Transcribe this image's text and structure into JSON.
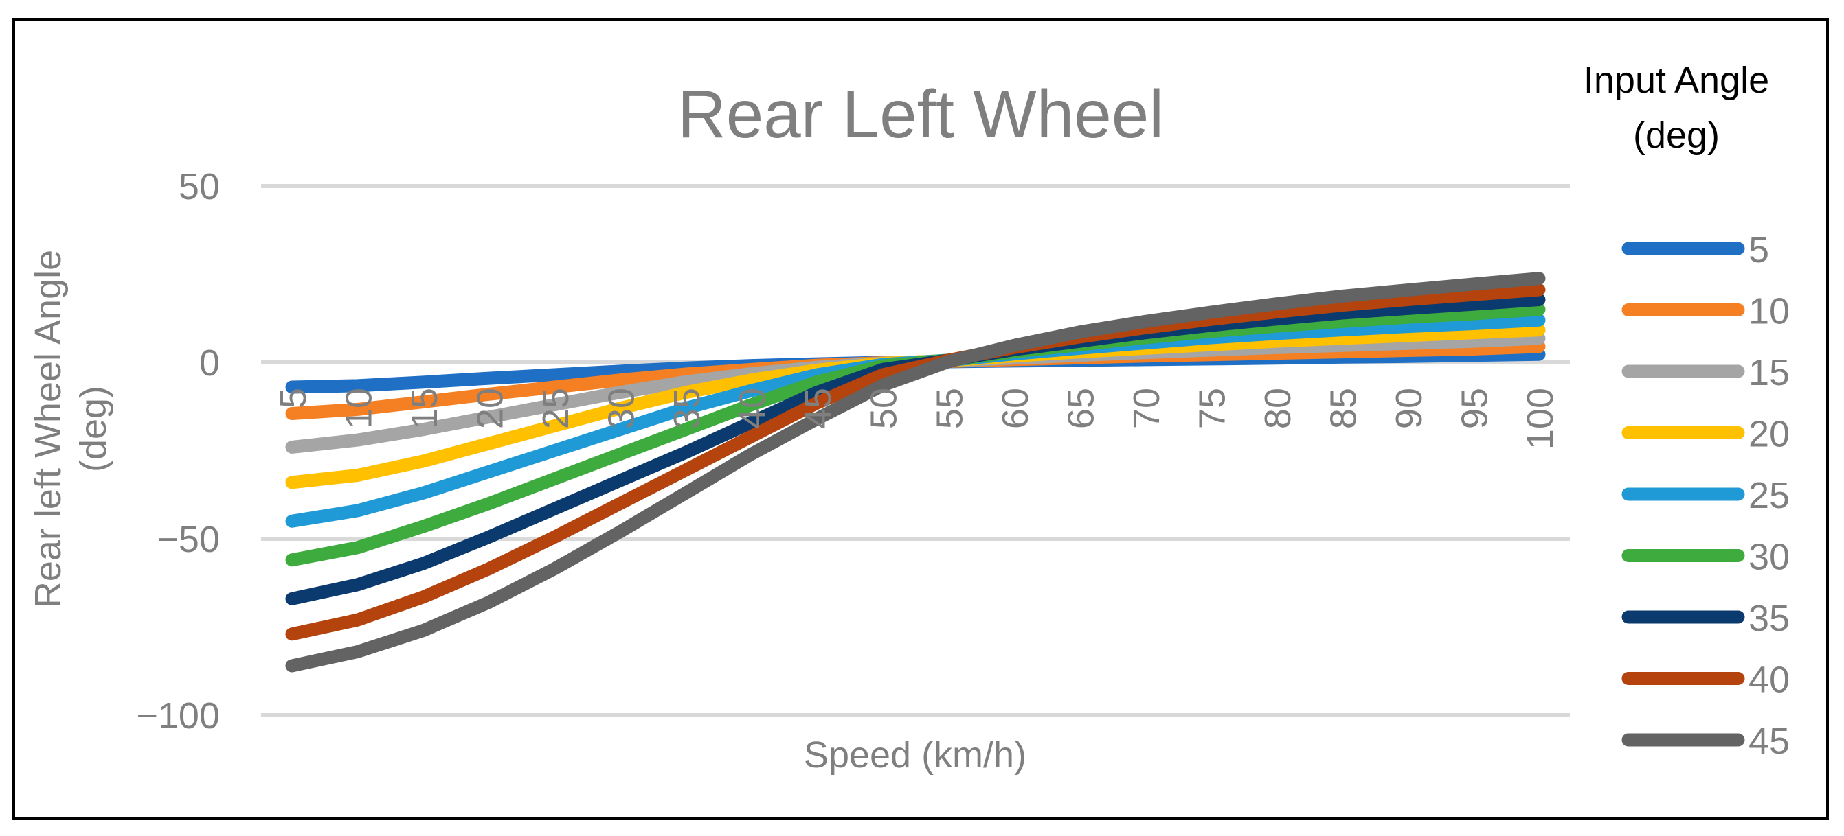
{
  "chart_data": {
    "type": "line",
    "title": "Rear Left Wheel",
    "xlabel": "Speed (km/h)",
    "ylabel": "Rear left Wheel Angle (deg)",
    "ylabel_lines": [
      "Rear left Wheel Angle",
      "(deg)"
    ],
    "ylim": [
      -100,
      50
    ],
    "yticks": [
      50,
      0,
      -50,
      -100
    ],
    "ytick_labels": [
      "50",
      "0",
      "−50",
      "−100"
    ],
    "grid": true,
    "legend_position": "right",
    "legend_title_lines": [
      "Input Angle",
      "(deg)"
    ],
    "categories": [
      "5",
      "10",
      "15",
      "20",
      "25",
      "30",
      "35",
      "40",
      "45",
      "50",
      "55",
      "60",
      "65",
      "70",
      "75",
      "80",
      "85",
      "90",
      "95",
      "100"
    ],
    "series": [
      {
        "name": "5",
        "color": "#1f6fc5",
        "values": [
          -7,
          -6.6,
          -5.6,
          -4.5,
          -3.5,
          -2.5,
          -1.6,
          -0.9,
          -0.4,
          0,
          0.2,
          0.4,
          0.6,
          0.8,
          1.0,
          1.2,
          1.5,
          1.7,
          2.0,
          2.3
        ]
      },
      {
        "name": "10",
        "color": "#f58024",
        "values": [
          -14.5,
          -13.3,
          -11.2,
          -9,
          -7,
          -5,
          -3.3,
          -2,
          -0.8,
          -0.1,
          0.3,
          0.8,
          1.3,
          1.8,
          2.2,
          2.6,
          3.0,
          3.4,
          3.8,
          4.5
        ]
      },
      {
        "name": "15",
        "color": "#a5a5a5",
        "values": [
          -24,
          -22,
          -19,
          -15.5,
          -12,
          -8.5,
          -5.5,
          -3.2,
          -1.4,
          -0.2,
          0.4,
          1.2,
          2.0,
          2.8,
          3.5,
          4.2,
          4.8,
          5.4,
          6.0,
          6.8
        ]
      },
      {
        "name": "20",
        "color": "#ffc000",
        "values": [
          -34,
          -32,
          -28,
          -23,
          -18,
          -13,
          -8.5,
          -5,
          -2.2,
          -0.3,
          0.5,
          1.8,
          3.0,
          4.0,
          5.0,
          6.0,
          6.8,
          7.6,
          8.4,
          9.2
        ]
      },
      {
        "name": "25",
        "color": "#1f9ad6",
        "values": [
          -45,
          -42,
          -37,
          -31,
          -25,
          -19,
          -13,
          -8,
          -3.5,
          -0.6,
          0.6,
          2.4,
          4.0,
          5.5,
          7.0,
          8.2,
          9.2,
          10.2,
          11.0,
          12.0
        ]
      },
      {
        "name": "30",
        "color": "#3dab3d",
        "values": [
          -56,
          -52.5,
          -46.5,
          -40,
          -33,
          -26,
          -19,
          -12,
          -5.5,
          -1,
          0.6,
          3.0,
          5.0,
          7.0,
          8.8,
          10.3,
          11.6,
          12.8,
          13.8,
          15.0
        ]
      },
      {
        "name": "35",
        "color": "#0a3a6e",
        "values": [
          -67,
          -63,
          -57,
          -49.5,
          -41.5,
          -33.5,
          -25.5,
          -17,
          -8.5,
          -2,
          0.6,
          3.6,
          6.0,
          8.4,
          10.5,
          12.3,
          14.0,
          15.3,
          16.5,
          17.8
        ]
      },
      {
        "name": "40",
        "color": "#b4430e",
        "values": [
          -77,
          -73,
          -66.5,
          -58.5,
          -49.5,
          -40,
          -30.5,
          -21,
          -11.5,
          -3.5,
          0.6,
          4.2,
          7.2,
          9.8,
          12.2,
          14.3,
          16.2,
          17.8,
          19.2,
          20.6
        ]
      },
      {
        "name": "45",
        "color": "#636363",
        "values": [
          -86,
          -82,
          -76,
          -68,
          -58.5,
          -48,
          -37,
          -26,
          -16,
          -6.5,
          0.2,
          4.8,
          8.6,
          11.6,
          14.2,
          16.6,
          18.8,
          20.5,
          22.2,
          23.8
        ]
      }
    ]
  }
}
